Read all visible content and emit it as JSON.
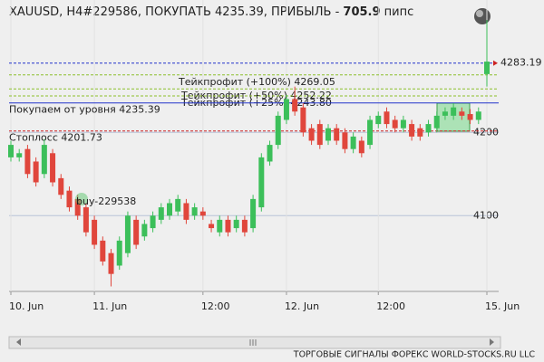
{
  "chart_data": {
    "type": "candlestick",
    "title": "XAUUSD, H4#229586, ПОКУПАТЬ 4235.39, ПРИБЫЛЬ - ",
    "profit": 705.9,
    "profit_unit": " пипс",
    "footer": "ТОРГОВЫЕ СИГНАЛЫ ФОРЕКС WORLD-STOCKS.RU LLC",
    "annotation": "buy-229538",
    "categories": [
      "10. Jun",
      null,
      null,
      null,
      null,
      null,
      null,
      null,
      null,
      null,
      "11. Jun",
      null,
      null,
      null,
      null,
      null,
      null,
      null,
      null,
      null,
      null,
      null,
      null,
      "12:00",
      null,
      null,
      null,
      null,
      null,
      null,
      null,
      null,
      null,
      "12. Jun",
      null,
      null,
      null,
      null,
      null,
      null,
      null,
      null,
      null,
      null,
      "12:00",
      null,
      null,
      null,
      null,
      null,
      null,
      null,
      null,
      null,
      null,
      null,
      null,
      "15. Jun"
    ],
    "open": [
      4170,
      4170,
      4180,
      4165,
      4150,
      4175,
      4145,
      4130,
      4120,
      4110,
      4095,
      4070,
      4055,
      4040,
      4055,
      4095,
      4075,
      4085,
      4095,
      4100,
      4105,
      4115,
      4100,
      4105,
      4090,
      4080,
      4095,
      4085,
      4095,
      4085,
      4110,
      4165,
      4185,
      4215,
      4240,
      4230,
      4205,
      4210,
      4190,
      4205,
      4200,
      4180,
      4190,
      4185,
      4210,
      4225,
      4215,
      4205,
      4210,
      4205,
      4200,
      4205,
      4220,
      4220,
      4225,
      4222,
      4215,
      4270
    ],
    "high": [
      4190,
      4180,
      4185,
      4170,
      4192,
      4180,
      4150,
      4135,
      4125,
      4115,
      4100,
      4075,
      4060,
      4075,
      4105,
      4100,
      4095,
      4105,
      4115,
      4120,
      4125,
      4120,
      4115,
      4110,
      4095,
      4100,
      4100,
      4100,
      4100,
      4125,
      4175,
      4190,
      4225,
      4245,
      4255,
      4235,
      4210,
      4215,
      4210,
      4210,
      4205,
      4200,
      4195,
      4220,
      4225,
      4230,
      4220,
      4220,
      4215,
      4210,
      4215,
      4225,
      4230,
      4235,
      4230,
      4228,
      4230,
      4335
    ],
    "low": [
      4165,
      4165,
      4145,
      4135,
      4145,
      4135,
      4120,
      4105,
      4095,
      4075,
      4060,
      4040,
      4015,
      4035,
      4050,
      4060,
      4070,
      4080,
      4090,
      4095,
      4100,
      4090,
      4095,
      4095,
      4080,
      4075,
      4075,
      4080,
      4075,
      4080,
      4105,
      4160,
      4180,
      4210,
      4220,
      4195,
      4185,
      4180,
      4185,
      4185,
      4175,
      4175,
      4170,
      4180,
      4205,
      4205,
      4200,
      4200,
      4190,
      4190,
      4195,
      4200,
      4215,
      4215,
      4215,
      4210,
      4210,
      4255
    ],
    "close": [
      4185,
      4175,
      4150,
      4140,
      4185,
      4140,
      4125,
      4110,
      4100,
      4080,
      4065,
      4045,
      4030,
      4070,
      4100,
      4065,
      4090,
      4100,
      4110,
      4115,
      4120,
      4095,
      4110,
      4100,
      4085,
      4095,
      4080,
      4095,
      4080,
      4120,
      4170,
      4185,
      4220,
      4240,
      4225,
      4200,
      4190,
      4185,
      4205,
      4190,
      4180,
      4195,
      4175,
      4215,
      4220,
      4210,
      4205,
      4215,
      4195,
      4195,
      4210,
      4220,
      4225,
      4230,
      4220,
      4215,
      4225,
      4285
    ],
    "up_color": "#3cbf5a",
    "down_color": "#e0463c",
    "ylim": [
      4009,
      4359
    ],
    "yticks": [
      4100,
      4200
    ],
    "grid": true,
    "current_price": {
      "value": 4283.19,
      "color": "#2233cc"
    },
    "levels": [
      {
        "label": "Тейкпрофит (+100%) 4269.05",
        "value": 4269.05,
        "color": "#8cbf2a"
      },
      {
        "label": "Тейкпрофит (+50%) 4252.22",
        "value": 4252.22,
        "color": "#8cbf2a"
      },
      {
        "label": "Тейкпрофит (+25%) 4243.80",
        "value": 4243.8,
        "color": "#8cbf2a"
      },
      {
        "label": "Покупаем от уровня 4235.39",
        "value": 4235.39,
        "color": "#2233cc"
      },
      {
        "label": "Стоплосс 4201.73",
        "value": 4201.73,
        "color": "#cc2222"
      }
    ]
  }
}
